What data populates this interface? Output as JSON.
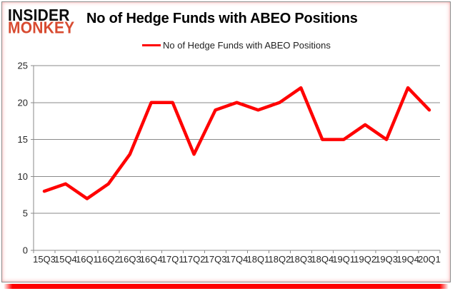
{
  "logo": {
    "line1": "INSIDER",
    "line2": "MONKEY"
  },
  "header": {
    "title": "No of Hedge Funds with ABEO Positions"
  },
  "legend": {
    "label": "No of Hedge Funds with ABEO Positions"
  },
  "colors": {
    "line": "#ff0000",
    "logo_black": "#0d0d0d",
    "logo_red": "#d84b31",
    "grid": "#8a8a8a",
    "axis_text": "#262626",
    "frame_border": "#8a8a8a",
    "bottom_accent": "#ff0000"
  },
  "chart_data": {
    "type": "line",
    "title": "No of Hedge Funds with ABEO Positions",
    "series_name": "No of Hedge Funds with ABEO Positions",
    "categories": [
      "15Q3",
      "15Q4",
      "16Q1",
      "16Q2",
      "16Q3",
      "16Q4",
      "17Q1",
      "17Q2",
      "17Q3",
      "17Q4",
      "18Q1",
      "18Q2",
      "18Q3",
      "18Q4",
      "19Q1",
      "19Q2",
      "19Q3",
      "19Q4",
      "20Q1"
    ],
    "values": [
      8,
      9,
      7,
      9,
      13,
      20,
      20,
      13,
      19,
      20,
      19,
      20,
      22,
      15,
      15,
      17,
      15,
      22,
      19
    ],
    "xlabel": "",
    "ylabel": "",
    "ylim": [
      0,
      25
    ],
    "yticks": [
      0,
      5,
      10,
      15,
      20,
      25
    ],
    "grid": "horizontal",
    "legend_position": "top-center",
    "line_color": "#ff0000",
    "line_width": 4.5
  }
}
